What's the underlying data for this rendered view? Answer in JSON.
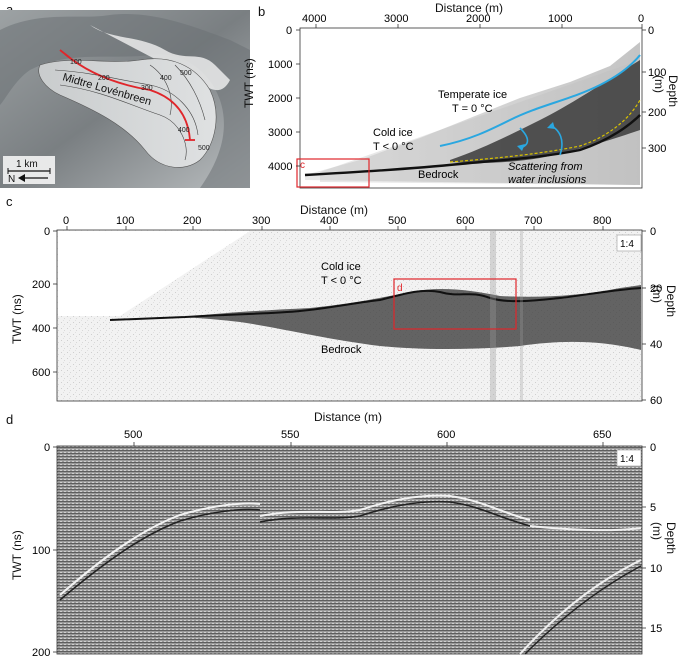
{
  "panels": {
    "a": {
      "letter": "a",
      "glacier_label": "Midtre Lovénbreen",
      "contour_labels": [
        "100",
        "200",
        "300",
        "400",
        "400",
        "500",
        "500"
      ],
      "scale_text": "1 km",
      "north_text": "N"
    },
    "b": {
      "letter": "b",
      "top_axis_title": "Distance (m)",
      "x_ticks": [
        "4000",
        "3000",
        "2000",
        "1000",
        "0"
      ],
      "left_axis_title": "TWT (ns)",
      "left_ticks": [
        "0",
        "1000",
        "2000",
        "3000",
        "4000"
      ],
      "right_axis_title": "Depth (m)",
      "right_ticks": [
        "0",
        "100",
        "200",
        "300"
      ],
      "temperate_label": [
        "Temperate ice",
        "T = 0 °C"
      ],
      "cold_label": [
        "Cold ice",
        "T < 0 °C"
      ],
      "bedrock_label": "Bedrock",
      "scattering_label": [
        "Scattering from",
        "water inclusions"
      ],
      "inset_letter": "c"
    },
    "c": {
      "letter": "c",
      "top_axis_title": "Distance (m)",
      "x_ticks": [
        "0",
        "100",
        "200",
        "300",
        "400",
        "500",
        "600",
        "700",
        "800"
      ],
      "left_axis_title": "TWT (ns)",
      "left_ticks": [
        "0",
        "200",
        "400",
        "600"
      ],
      "right_axis_title": "Depth (m)",
      "right_ticks": [
        "0",
        "20",
        "40",
        "60"
      ],
      "cold_label": [
        "Cold ice",
        "T < 0 °C"
      ],
      "bedrock_label": "Bedrock",
      "inset_letter": "d",
      "ratio": "1:4"
    },
    "d": {
      "letter": "d",
      "top_axis_title": "Distance (m)",
      "x_ticks": [
        "500",
        "550",
        "600",
        "650"
      ],
      "left_axis_title": "TWT (ns)",
      "left_ticks": [
        "0",
        "100",
        "200"
      ],
      "right_axis_title": "Depth (m)",
      "right_ticks": [
        "0",
        "5",
        "10",
        "15"
      ],
      "ratio": "1:4"
    }
  },
  "colors": {
    "profile_line": "#e0262b",
    "temperate_boundary": "#2aa7e0",
    "bed_dashed": "#d8c200",
    "inset_box": "#e0262b",
    "arrow": "#2aa7e0"
  }
}
